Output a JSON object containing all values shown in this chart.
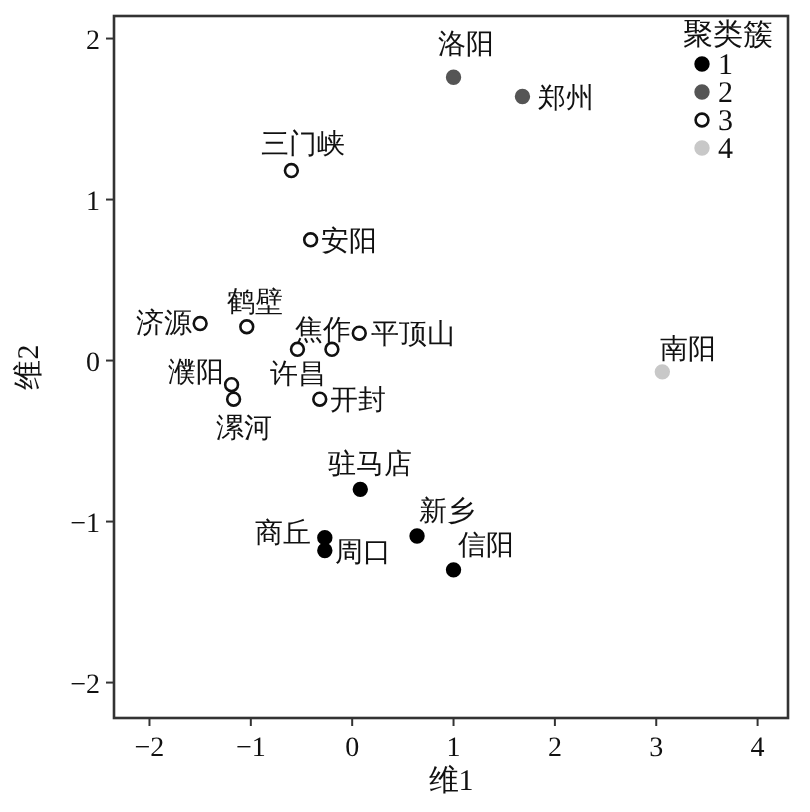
{
  "chart_data": {
    "type": "scatter",
    "xlabel": "维1",
    "ylabel": "维2",
    "legend_title": "聚类簇",
    "legend": "top right",
    "marker": "circle",
    "grid": false,
    "xlim": [
      -2.35,
      4.3
    ],
    "ylim": [
      -2.22,
      2.14
    ],
    "xticks": [
      -2,
      -1,
      0,
      1,
      2,
      3,
      4
    ],
    "yticks": [
      -2,
      -1,
      0,
      1,
      2
    ],
    "series": [
      {
        "name": "1",
        "color": "#000000",
        "x": [
          0.08,
          -0.27,
          -0.27,
          0.64,
          1.0
        ],
        "values": [
          -0.8,
          -1.1,
          -1.18,
          -1.09,
          -1.3
        ]
      },
      {
        "name": "2",
        "color": "#555555",
        "x": [
          1.0,
          1.68
        ],
        "values": [
          1.76,
          1.64
        ]
      },
      {
        "name": "3",
        "color": "#ffffff",
        "x": [
          -0.6,
          -0.41,
          -1.5,
          -1.04,
          -0.54,
          -0.2,
          0.07,
          -1.19,
          -1.17,
          -0.32
        ],
        "values": [
          1.18,
          0.75,
          0.23,
          0.21,
          0.07,
          0.07,
          0.17,
          -0.15,
          -0.24,
          -0.24
        ]
      },
      {
        "name": "4",
        "color": "#c8c8c8",
        "x": [
          3.06
        ],
        "values": [
          -0.07
        ]
      }
    ],
    "annotations": [
      {
        "text": "洛阳",
        "x": 1.0,
        "y": 1.76
      },
      {
        "text": "郑州",
        "x": 1.68,
        "y": 1.64
      },
      {
        "text": "三门峡",
        "x": -0.6,
        "y": 1.18
      },
      {
        "text": "安阳",
        "x": -0.41,
        "y": 0.75
      },
      {
        "text": "济源",
        "x": -1.5,
        "y": 0.23
      },
      {
        "text": "鹤壁",
        "x": -1.04,
        "y": 0.21
      },
      {
        "text": "焦作",
        "x": -0.54,
        "y": 0.07
      },
      {
        "text": "许昌",
        "x": -0.2,
        "y": 0.07
      },
      {
        "text": "平顶山",
        "x": 0.07,
        "y": 0.17
      },
      {
        "text": "濮阳",
        "x": -1.19,
        "y": -0.15
      },
      {
        "text": "漯河",
        "x": -1.17,
        "y": -0.24
      },
      {
        "text": "开封",
        "x": -0.32,
        "y": -0.24
      },
      {
        "text": "南阳",
        "x": 3.06,
        "y": -0.07
      },
      {
        "text": "驻马店",
        "x": 0.08,
        "y": -0.8
      },
      {
        "text": "商丘",
        "x": -0.27,
        "y": -1.1
      },
      {
        "text": "周口",
        "x": -0.27,
        "y": -1.18
      },
      {
        "text": "新乡",
        "x": 0.64,
        "y": -1.09
      },
      {
        "text": "信阳",
        "x": 1.0,
        "y": -1.3
      }
    ]
  }
}
